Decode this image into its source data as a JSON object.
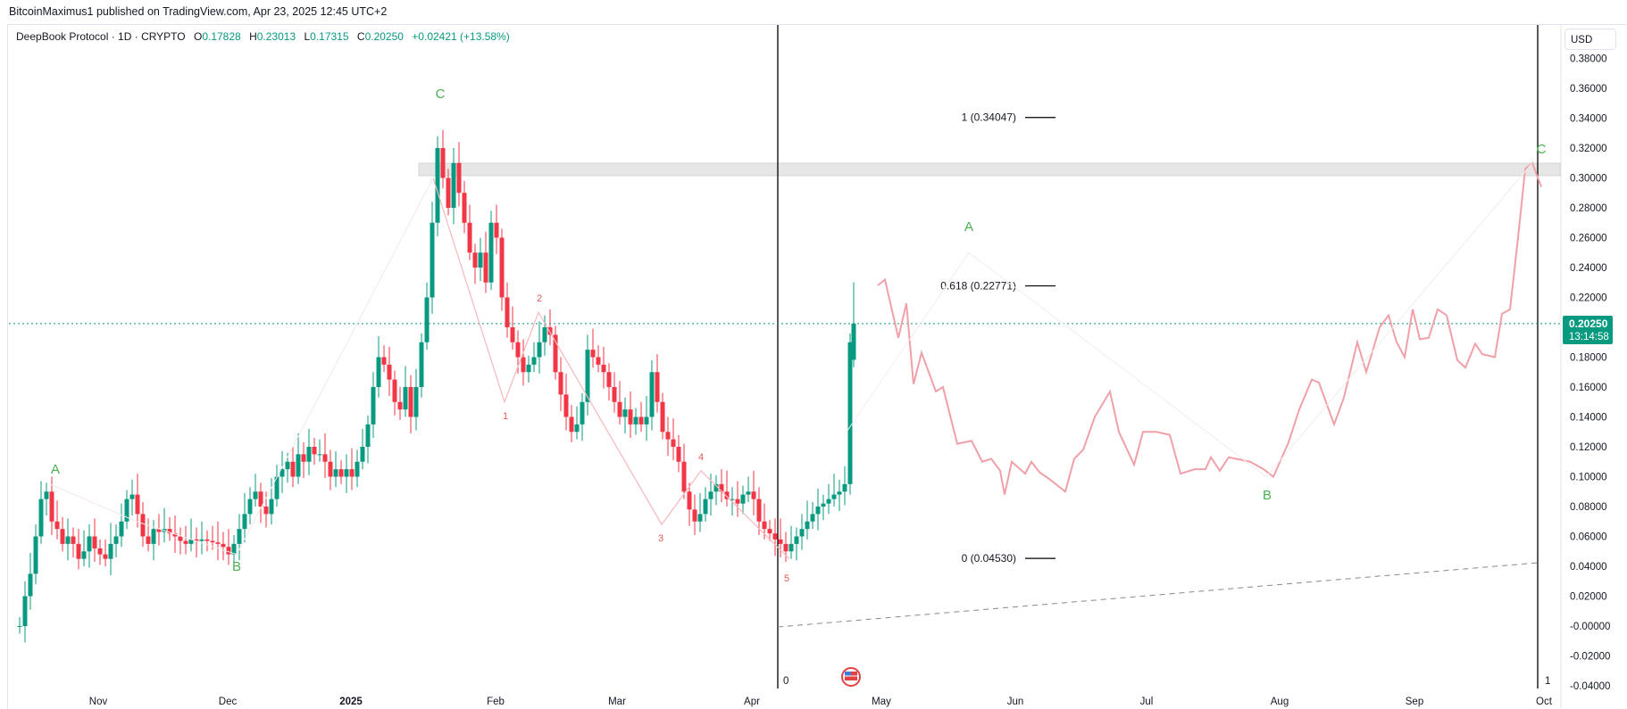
{
  "header": {
    "published_line": "BitcoinMaximus1 published on TradingView.com, Apr 23, 2025 12:45 UTC+2"
  },
  "legend": {
    "symbol": "DeepBook Protocol · 1D · CRYPTO",
    "open_label": "O",
    "open": "0.17828",
    "high_label": "H",
    "high": "0.23013",
    "low_label": "L",
    "low": "0.17315",
    "close_label": "C",
    "close": "0.20250",
    "change": "+0.02421 (+13.58%)"
  },
  "price_axis": {
    "currency": "USD",
    "ticks": [
      "0.38000",
      "0.36000",
      "0.34000",
      "0.32000",
      "0.30000",
      "0.28000",
      "0.26000",
      "0.24000",
      "0.22000",
      "0.20000",
      "0.18000",
      "0.16000",
      "0.14000",
      "0.12000",
      "0.10000",
      "0.08000",
      "0.06000",
      "0.04000",
      "0.02000",
      "-0.00000",
      "-0.02000",
      "-0.04000"
    ],
    "last_price": "0.20250",
    "countdown": "13:14:58"
  },
  "time_axis": {
    "ticks": [
      "Nov",
      "Dec",
      "2025",
      "Feb",
      "Mar",
      "Apr",
      "May",
      "Jun",
      "Jul",
      "Aug",
      "Sep",
      "Oct"
    ]
  },
  "fib": {
    "levels": [
      {
        "label": "1 (0.34047)",
        "value": 0.34047
      },
      {
        "label": "0.618 (0.22771)",
        "value": 0.22771
      },
      {
        "label": "0 (0.04530)",
        "value": 0.0453
      }
    ],
    "zero_marker": "0",
    "one_marker": "1"
  },
  "annotations": {
    "abc_past": [
      "A",
      "B",
      "C"
    ],
    "impulse": [
      "1",
      "2",
      "3",
      "4",
      "5"
    ],
    "abc_projection": [
      "A",
      "B",
      "C"
    ]
  },
  "colors": {
    "up": "#089981",
    "down": "#f23645",
    "wave_green": "#4caf50",
    "wave_red": "#e05a5a",
    "projection": "#f0a0a8",
    "zone": "#e6e6e6"
  },
  "chart_data": {
    "type": "candlestick",
    "title": "DeepBook Protocol · 1D · CRYPTO",
    "xlabel": "",
    "ylabel": "USD",
    "ylim": [
      -0.04,
      0.38
    ],
    "x_ticks": [
      "Nov",
      "Dec",
      "2025",
      "Feb",
      "Mar",
      "Apr",
      "May",
      "Jun",
      "Jul",
      "Aug",
      "Sep",
      "Oct"
    ],
    "ohlc_latest": {
      "open": 0.17828,
      "high": 0.23013,
      "low": 0.17315,
      "close": 0.2025,
      "change": 0.02421,
      "change_pct": 13.58
    },
    "resistance_zone": [
      0.3,
      0.308
    ],
    "fib_levels": {
      "1": 0.34047,
      "0.618": 0.22771,
      "0": 0.0453
    },
    "wave_points_past": [
      {
        "label": "A",
        "date": "Oct 2024",
        "price": 0.095
      },
      {
        "label": "B",
        "date": "Dec 2024",
        "price": 0.048
      },
      {
        "label": "C",
        "date": "Jan 2025",
        "price": 0.343
      },
      {
        "label": "1",
        "date": "Feb 2025",
        "price": 0.15
      },
      {
        "label": "2",
        "date": "Feb 2025",
        "price": 0.21
      },
      {
        "label": "3",
        "date": "Mar 2025",
        "price": 0.068
      },
      {
        "label": "4",
        "date": "Mar 2025",
        "price": 0.104
      },
      {
        "label": "5",
        "date": "Apr 2025",
        "price": 0.045
      }
    ],
    "projection_points": [
      {
        "label": "A",
        "date": "May 2025",
        "price": 0.25
      },
      {
        "label": "B",
        "date": "Jul 2025",
        "price": 0.1
      },
      {
        "label": "C",
        "date": "Sep 2025",
        "price": 0.31
      }
    ],
    "close_series_approx": {
      "x": [
        "Oct",
        "Nov",
        "Dec",
        "Jan",
        "Jan-mid",
        "Feb",
        "Mar",
        "Apr",
        "Apr-22"
      ],
      "values": [
        0.0,
        0.06,
        0.05,
        0.13,
        0.3,
        0.18,
        0.08,
        0.05,
        0.2025
      ]
    }
  }
}
